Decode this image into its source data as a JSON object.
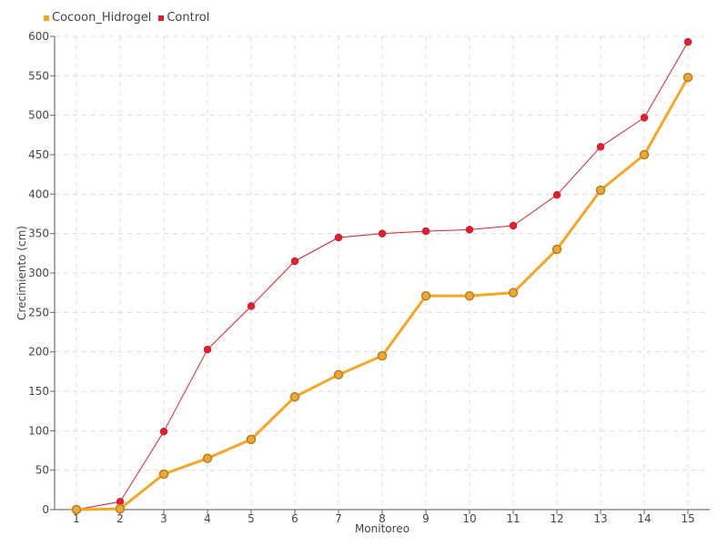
{
  "chart_data": {
    "type": "line",
    "title": "",
    "xlabel": "Monitoreo",
    "ylabel": "Crecimiento (cm)",
    "categories": [
      "1",
      "2",
      "3",
      "4",
      "5",
      "6",
      "7",
      "8",
      "9",
      "10",
      "11",
      "12",
      "13",
      "14",
      "15"
    ],
    "ylim": [
      0,
      600
    ],
    "yticks": [
      "0",
      "50",
      "100",
      "150",
      "200",
      "250",
      "300",
      "350",
      "400",
      "450",
      "500",
      "550",
      "600"
    ],
    "grid": true,
    "legend_position": "top-left",
    "series": [
      {
        "name": "Cocoon_Hidrogel",
        "color": "#f5a623",
        "values": [
          0,
          1,
          45,
          65,
          89,
          143,
          171,
          195,
          271,
          271,
          275,
          330,
          405,
          450,
          548
        ]
      },
      {
        "name": "Control",
        "color": "#e0202c",
        "values": [
          0,
          10,
          99,
          203,
          258,
          315,
          345,
          350,
          353,
          355,
          360,
          399,
          460,
          497,
          593
        ]
      }
    ]
  }
}
